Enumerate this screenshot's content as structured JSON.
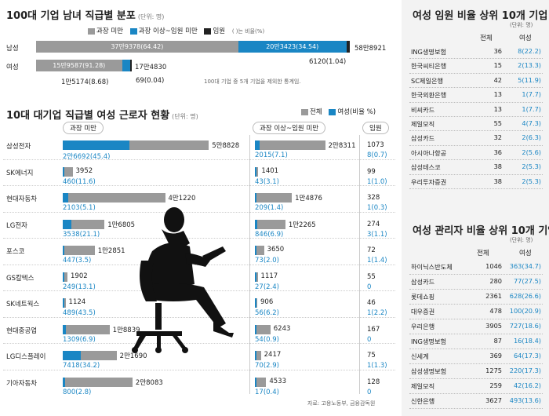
{
  "overview": {
    "title": "100대 기업 남녀 직급별 분포",
    "unit": "(단위: 명)",
    "legend": [
      {
        "label": "과장 미만",
        "color": "#9a9a9a"
      },
      {
        "label": "과장 이상~임원 미만",
        "color": "#1a86c4"
      },
      {
        "label": "임원",
        "color": "#222222"
      }
    ],
    "legend_note": "( )는 비율(%)",
    "rows": [
      {
        "label": "남성",
        "segments": [
          {
            "text": "37만9378(64.42)",
            "value": 64.42,
            "color": "#9a9a9a"
          },
          {
            "text": "20만3423(34.54)",
            "value": 34.54,
            "color": "#1a86c4"
          },
          {
            "text": "6120(1.04)",
            "value": 1.04,
            "color": "#222222"
          }
        ],
        "total": "58만8921"
      },
      {
        "label": "여성",
        "segments": [
          {
            "text": "15만9587(91.28)",
            "value": 91.28,
            "color": "#9a9a9a"
          },
          {
            "text": "1만5174(8.68)",
            "value": 8.68,
            "color": "#1a86c4"
          },
          {
            "text": "69(0.04)",
            "value": 0.04,
            "color": "#222222"
          }
        ],
        "total": "17만4830"
      }
    ],
    "note": "100대 기업 중 5개 기업을 제외한 통계임."
  },
  "section2": {
    "title": "10대 대기업 직급별 여성 근로자 현황",
    "unit": "(단위: 명)",
    "legend_total": "전체",
    "legend_female": "여성(비율 %)",
    "col1_header": "과장 미만",
    "col2_header": "과장 이상~임원 미만",
    "col3_header": "임원",
    "source": "자료: 고용노동부, 금융감독원"
  },
  "chart_data": {
    "type": "bar",
    "categories": [
      "삼성전자",
      "SK에너지",
      "현대자동차",
      "LG전자",
      "포스코",
      "GS칼텍스",
      "SK네트웍스",
      "현대중공업",
      "LG디스플레이",
      "기아자동차"
    ],
    "series": [
      {
        "name": "과장 미만 전체",
        "labels": [
          "5만8828",
          "3952",
          "4만1220",
          "1만6805",
          "1만2851",
          "1902",
          "1124",
          "1만8839",
          "2만1690",
          "2만8083"
        ],
        "values": [
          58828,
          3952,
          41220,
          16805,
          12851,
          1902,
          1124,
          18839,
          21690,
          28083
        ]
      },
      {
        "name": "과장 미만 여성",
        "labels": [
          "2만6692(45.4)",
          "460(11.6)",
          "2103(5.1)",
          "3538(21.1)",
          "447(3.5)",
          "249(13.1)",
          "489(43.5)",
          "1309(6.9)",
          "7418(34.2)",
          "800(2.8)"
        ],
        "values": [
          26692,
          460,
          2103,
          3538,
          447,
          249,
          489,
          1309,
          7418,
          800
        ]
      },
      {
        "name": "과장 이상~임원 미만 전체",
        "labels": [
          "2만8311",
          "1401",
          "1만4876",
          "1만2265",
          "3650",
          "1117",
          "906",
          "6243",
          "2417",
          "4533"
        ],
        "values": [
          28311,
          1401,
          14876,
          12265,
          3650,
          1117,
          906,
          6243,
          2417,
          4533
        ]
      },
      {
        "name": "과장 이상~임원 미만 여성",
        "labels": [
          "2015(7.1)",
          "43(3.1)",
          "209(1.4)",
          "846(6.9)",
          "73(2.0)",
          "27(2.4)",
          "56(6.2)",
          "54(0.9)",
          "70(2.9)",
          "17(0.4)"
        ],
        "values": [
          2015,
          43,
          209,
          846,
          73,
          27,
          56,
          54,
          70,
          17
        ]
      },
      {
        "name": "임원 전체",
        "labels": [
          "1073",
          "99",
          "328",
          "274",
          "72",
          "55",
          "46",
          "167",
          "75",
          "128"
        ],
        "values": [
          1073,
          99,
          328,
          274,
          72,
          55,
          46,
          167,
          75,
          128
        ]
      },
      {
        "name": "임원 여성",
        "labels": [
          "8(0.7)",
          "1(1.0)",
          "1(0.3)",
          "3(1.1)",
          "1(1.4)",
          "0",
          "1(2.2)",
          "0",
          "1(1.3)",
          "0"
        ],
        "values": [
          8,
          1,
          1,
          3,
          1,
          0,
          1,
          0,
          1,
          0
        ]
      }
    ]
  },
  "exec_table": {
    "title": "여성 임원 비율 상위 10개 기업",
    "unit": "(단위: 명)",
    "col_total": "전체",
    "col_female": "여성",
    "rows": [
      {
        "name": "ING생명보험",
        "total": "36",
        "female": "8(22.2)"
      },
      {
        "name": "한국씨티은행",
        "total": "15",
        "female": "2(13.3)"
      },
      {
        "name": "SC제일은행",
        "total": "42",
        "female": "5(11.9)"
      },
      {
        "name": "한국외환은행",
        "total": "13",
        "female": "1(7.7)"
      },
      {
        "name": "비씨카드",
        "total": "13",
        "female": "1(7.7)"
      },
      {
        "name": "제일모직",
        "total": "55",
        "female": "4(7.3)"
      },
      {
        "name": "삼성카드",
        "total": "32",
        "female": "2(6.3)"
      },
      {
        "name": "아시아나항공",
        "total": "36",
        "female": "2(5.6)"
      },
      {
        "name": "삼성테스코",
        "total": "38",
        "female": "2(5.3)"
      },
      {
        "name": "우리투자증권",
        "total": "38",
        "female": "2(5.3)"
      }
    ]
  },
  "mgr_table": {
    "title": "여성 관리자 비율 상위 10개 기업",
    "unit": "(단위: 명)",
    "col_total": "전체",
    "col_female": "여성",
    "rows": [
      {
        "name": "하이닉스반도체",
        "total": "1046",
        "female": "363(34.7)"
      },
      {
        "name": "삼성카드",
        "total": "280",
        "female": "77(27.5)"
      },
      {
        "name": "롯데쇼핑",
        "total": "2361",
        "female": "628(26.6)"
      },
      {
        "name": "대우증권",
        "total": "478",
        "female": "100(20.9)"
      },
      {
        "name": "우리은행",
        "total": "3905",
        "female": "727(18.6)"
      },
      {
        "name": "ING생명보험",
        "total": "87",
        "female": "16(18.4)"
      },
      {
        "name": "신세계",
        "total": "369",
        "female": "64(17.3)"
      },
      {
        "name": "삼성생명보험",
        "total": "1275",
        "female": "220(17.3)"
      },
      {
        "name": "제일모직",
        "total": "259",
        "female": "42(16.2)"
      },
      {
        "name": "신한은행",
        "total": "3627",
        "female": "493(13.6)"
      }
    ]
  }
}
